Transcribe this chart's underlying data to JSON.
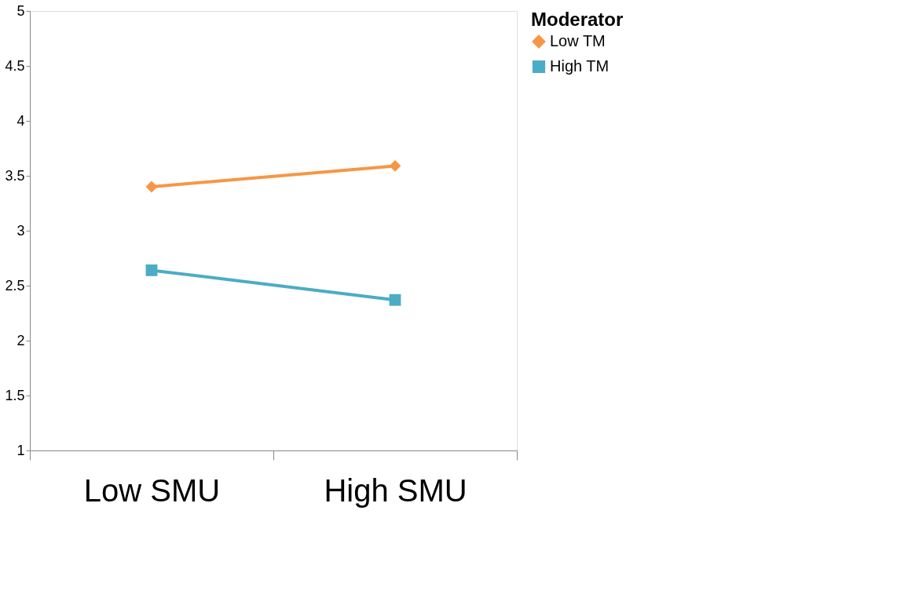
{
  "chart_data": {
    "type": "line",
    "categories": [
      "Low SMU",
      "High SMU"
    ],
    "series": [
      {
        "name": "Low TM",
        "color": "#f79646",
        "marker": "diamond",
        "values": [
          3.4,
          3.59
        ]
      },
      {
        "name": "High TM",
        "color": "#4bacc6",
        "marker": "square",
        "values": [
          2.64,
          2.37
        ]
      }
    ],
    "legend_title": "Moderator",
    "legend": "right",
    "ylim": [
      1,
      5
    ],
    "yticks": [
      1,
      1.5,
      2,
      2.5,
      3,
      3.5,
      4,
      4.5,
      5
    ],
    "grid": false
  }
}
